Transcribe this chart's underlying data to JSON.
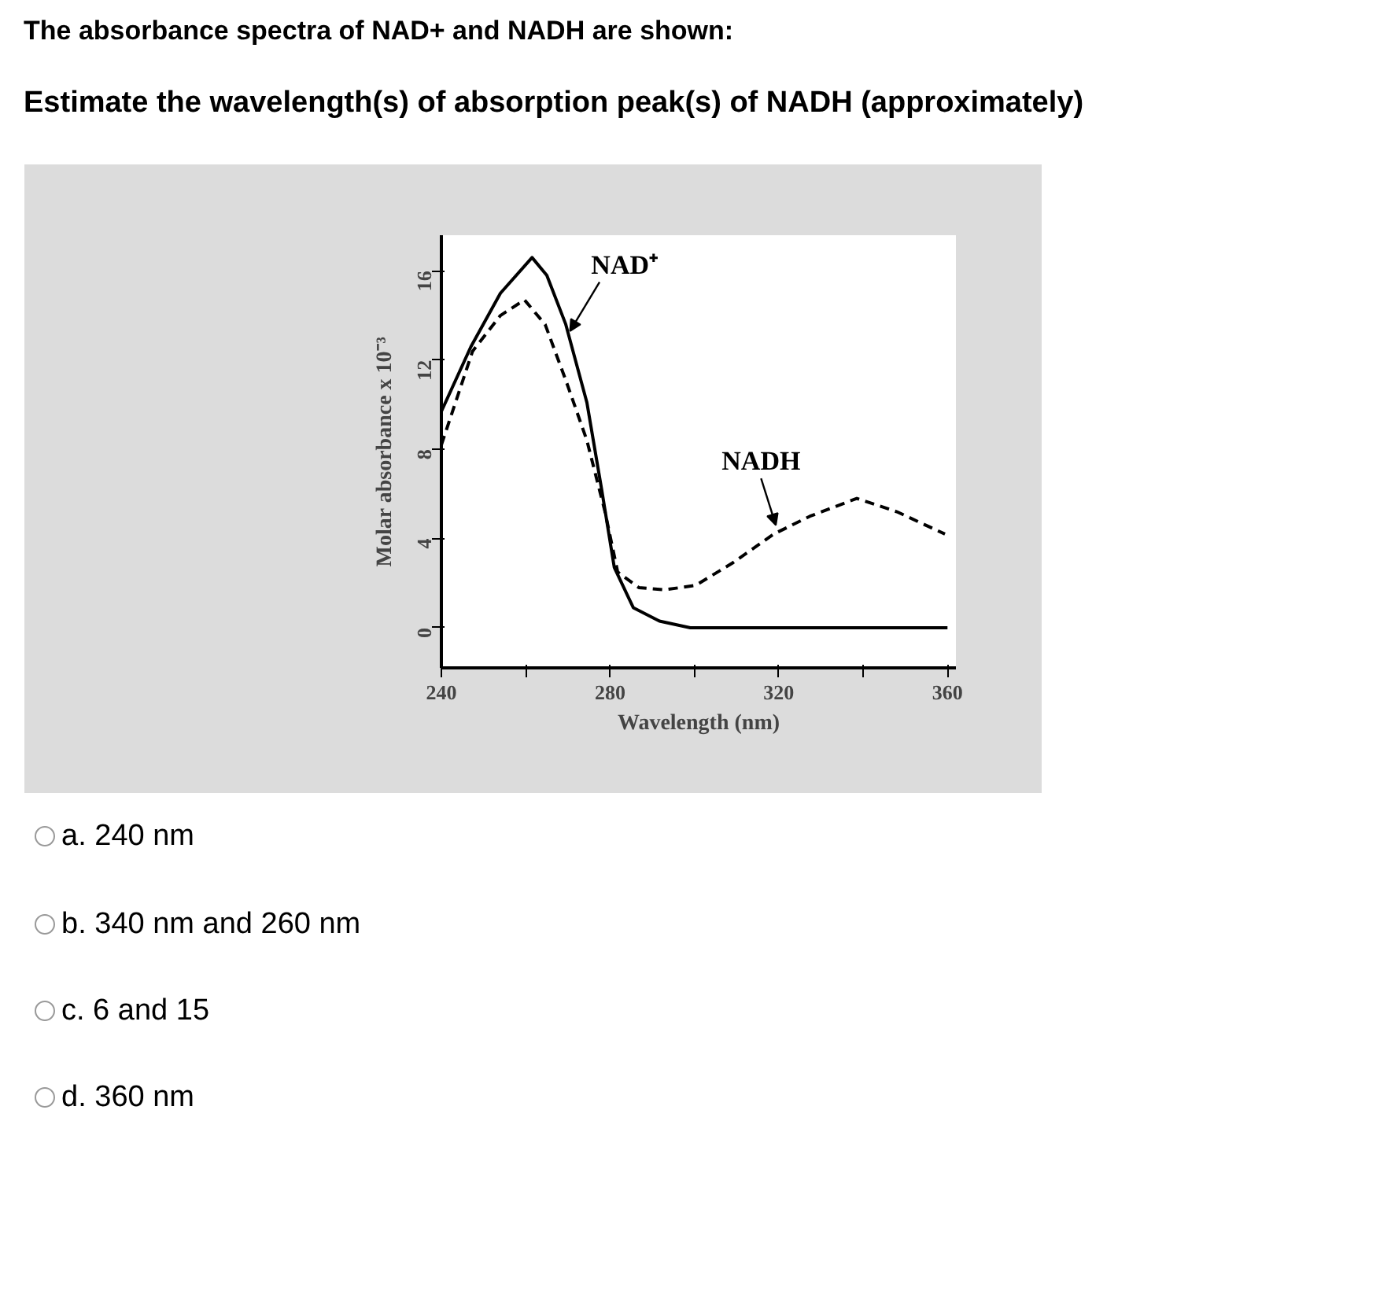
{
  "chart_data": {
    "type": "line",
    "title": "The absorbance spectra of NAD+ and NADH are shown:",
    "subtitle": "Estimate the wavelength(s) of absorption peak(s) of NADH (approximately)",
    "xlabel": "Wavelength (nm)",
    "ylabel": "Molar absorbance x 10⁻³",
    "xlim": [
      240,
      362
    ],
    "ylim": [
      -1.8,
      17.6
    ],
    "xticks": [
      240,
      {
        "value": 260,
        "label": null
      },
      280,
      {
        "value": 300,
        "label": null
      },
      320,
      {
        "value": 340,
        "label": null
      },
      360
    ],
    "yticks": [
      0,
      4,
      8,
      12,
      16
    ],
    "grid": false,
    "legend": false,
    "marker": "none",
    "series": [
      {
        "name": "NAD⁺",
        "color": "#000000",
        "line_style": "solid",
        "x": [
          240,
          247,
          254,
          261.5,
          265,
          269.5,
          274.5,
          278,
          281,
          285.5,
          291.7,
          299,
          320,
          340,
          360
        ],
        "values": [
          9.7,
          12.6,
          15.0,
          16.6,
          15.8,
          13.6,
          10.1,
          6.2,
          2.7,
          0.9,
          0.3,
          0,
          0,
          0,
          0
        ]
      },
      {
        "name": "NADH",
        "color": "#000000",
        "line_style": "dashed",
        "x": [
          240,
          247.4,
          254,
          259.7,
          264.6,
          269.5,
          274.5,
          278.8,
          281.8,
          286.8,
          292.9,
          300.3,
          309,
          318.8,
          327.4,
          338.5,
          348,
          359.4
        ],
        "values": [
          8.2,
          12.4,
          14.0,
          14.7,
          13.6,
          11.1,
          8.4,
          5.2,
          2.5,
          1.8,
          1.7,
          1.9,
          2.9,
          4.2,
          5.0,
          5.8,
          5.2,
          4.2
        ]
      }
    ],
    "annotations": [
      "a. 240 nm",
      "b. 340 nm and 260 nm",
      "c. 6 and 15",
      "d. 360 nm"
    ]
  }
}
